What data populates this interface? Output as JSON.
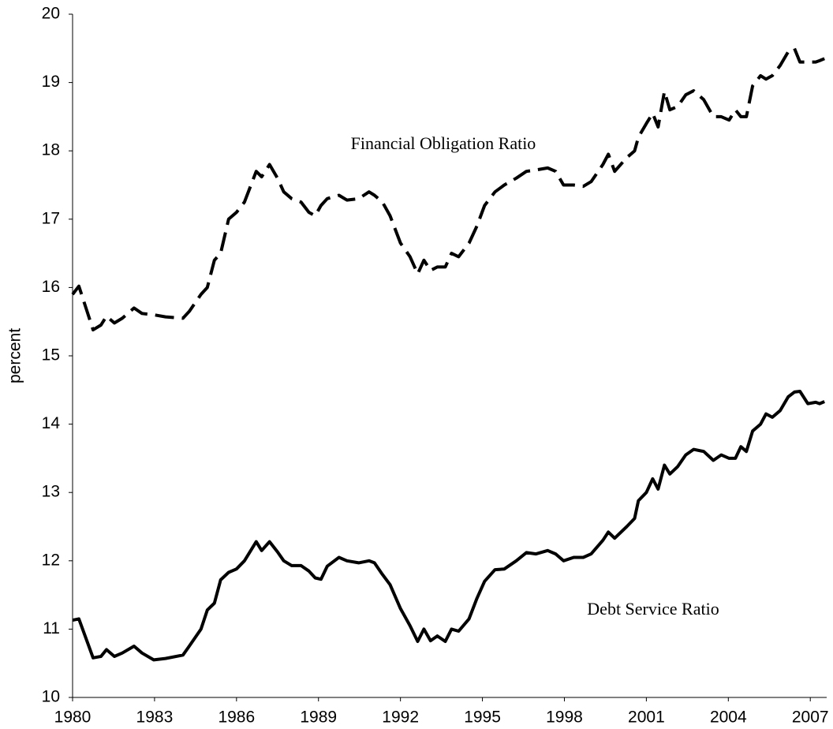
{
  "chart_data": {
    "type": "line",
    "ylabel": "percent",
    "x": [
      1980.0,
      1980.23,
      1980.75,
      1981.04,
      1981.24,
      1981.53,
      1981.82,
      1982.25,
      1982.54,
      1982.97,
      1983.4,
      1984.04,
      1984.27,
      1984.7,
      1984.93,
      1985.19,
      1985.42,
      1985.71,
      1986.0,
      1986.29,
      1986.72,
      1986.92,
      1987.21,
      1987.5,
      1987.73,
      1988.02,
      1988.36,
      1988.65,
      1988.88,
      1989.09,
      1989.32,
      1989.75,
      1990.04,
      1990.47,
      1990.85,
      1991.05,
      1991.34,
      1991.62,
      1992.0,
      1992.35,
      1992.63,
      1992.86,
      1993.1,
      1993.35,
      1993.64,
      1993.87,
      1994.13,
      1994.51,
      1994.8,
      1995.08,
      1995.46,
      1995.8,
      1996.24,
      1996.61,
      1996.96,
      1997.39,
      1997.68,
      1997.97,
      1998.34,
      1998.69,
      1998.98,
      1999.41,
      1999.61,
      1999.84,
      2000.28,
      2000.57,
      2000.71,
      2001.0,
      2001.23,
      2001.43,
      2001.66,
      2001.86,
      2002.15,
      2002.44,
      2002.73,
      2003.1,
      2003.45,
      2003.74,
      2004.03,
      2004.26,
      2004.46,
      2004.66,
      2004.89,
      2005.18,
      2005.38,
      2005.61,
      2005.9,
      2006.19,
      2006.42,
      2006.62,
      2006.91,
      2007.2,
      2007.34,
      2007.52
    ],
    "series": [
      {
        "name": "Financial Obligation Ratio",
        "color": "#000000",
        "dashed": true,
        "values": [
          15.9,
          16.02,
          15.38,
          15.45,
          15.58,
          15.48,
          15.55,
          15.7,
          15.62,
          15.6,
          15.57,
          15.55,
          15.65,
          15.9,
          16.0,
          16.4,
          16.5,
          17.0,
          17.1,
          17.25,
          17.7,
          17.62,
          17.8,
          17.6,
          17.4,
          17.3,
          17.25,
          17.1,
          17.05,
          17.2,
          17.3,
          17.35,
          17.28,
          17.3,
          17.4,
          17.35,
          17.25,
          17.05,
          16.65,
          16.45,
          16.2,
          16.4,
          16.25,
          16.3,
          16.3,
          16.5,
          16.45,
          16.65,
          16.9,
          17.2,
          17.4,
          17.5,
          17.6,
          17.7,
          17.72,
          17.75,
          17.7,
          17.5,
          17.5,
          17.48,
          17.55,
          17.8,
          17.95,
          17.7,
          17.9,
          18.0,
          18.2,
          18.4,
          18.55,
          18.35,
          18.87,
          18.6,
          18.65,
          18.82,
          18.88,
          18.75,
          18.5,
          18.5,
          18.45,
          18.6,
          18.5,
          18.5,
          18.95,
          19.1,
          19.05,
          19.1,
          19.25,
          19.45,
          19.5,
          19.3,
          19.3,
          19.3,
          19.32,
          19.35
        ]
      },
      {
        "name": "Debt Service Ratio",
        "color": "#000000",
        "dashed": false,
        "values": [
          11.13,
          11.15,
          10.58,
          10.6,
          10.7,
          10.6,
          10.65,
          10.75,
          10.65,
          10.55,
          10.57,
          10.62,
          10.75,
          11.0,
          11.28,
          11.38,
          11.72,
          11.83,
          11.88,
          12.0,
          12.28,
          12.15,
          12.28,
          12.13,
          12.0,
          11.93,
          11.93,
          11.85,
          11.75,
          11.73,
          11.92,
          12.05,
          12.0,
          11.97,
          12.0,
          11.97,
          11.8,
          11.65,
          11.3,
          11.05,
          10.82,
          11.0,
          10.83,
          10.9,
          10.82,
          11.0,
          10.97,
          11.15,
          11.45,
          11.7,
          11.87,
          11.88,
          12.0,
          12.12,
          12.1,
          12.15,
          12.1,
          12.0,
          12.05,
          12.05,
          12.1,
          12.3,
          12.42,
          12.33,
          12.5,
          12.62,
          12.88,
          13.0,
          13.2,
          13.05,
          13.4,
          13.27,
          13.38,
          13.55,
          13.63,
          13.6,
          13.47,
          13.55,
          13.5,
          13.5,
          13.67,
          13.6,
          13.9,
          14.0,
          14.15,
          14.1,
          14.2,
          14.4,
          14.47,
          14.48,
          14.3,
          14.32,
          14.3,
          14.33
        ]
      }
    ],
    "xlim": [
      1980,
      2007.6
    ],
    "xticks": [
      1980,
      1983,
      1986,
      1989,
      1992,
      1995,
      1998,
      2001,
      2004,
      2007
    ],
    "ylim": [
      10,
      20
    ],
    "yticks": [
      10,
      11,
      12,
      13,
      14,
      15,
      16,
      17,
      18,
      19,
      20
    ]
  }
}
